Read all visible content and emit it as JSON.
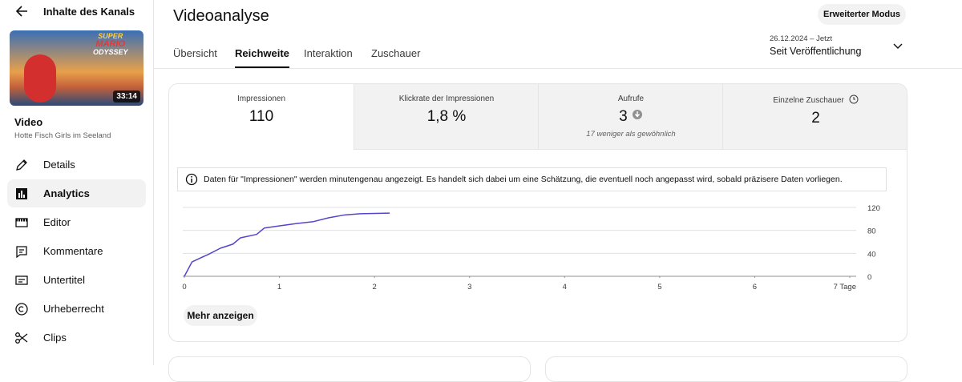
{
  "sidebar": {
    "back_label": "Inhalte des Kanals",
    "thumbnail": {
      "logo": [
        "SUPER",
        "MARIO",
        "ODYSSEY"
      ],
      "duration": "33:14"
    },
    "video_label": "Video",
    "video_title": "Hotte Fisch Girls im Seeland",
    "nav": [
      "Details",
      "Analytics",
      "Editor",
      "Kommentare",
      "Untertitel",
      "Urheberrecht",
      "Clips"
    ],
    "nav_active": 1
  },
  "header": {
    "title": "Videoanalyse",
    "mode_button": "Erweiterter Modus",
    "tabs": [
      "Übersicht",
      "Reichweite",
      "Interaktion",
      "Zuschauer"
    ],
    "active_tab": 1,
    "date_range": {
      "period": "26.12.2024 – Jetzt",
      "label": "Seit Veröffentlichung"
    }
  },
  "metrics": [
    {
      "label": "Impressionen",
      "value": "110"
    },
    {
      "label": "Klickrate der Impressionen",
      "value": "1,8 %"
    },
    {
      "label": "Aufrufe",
      "value": "3",
      "note": "17 weniger als gewöhnlich"
    },
    {
      "label": "Einzelne Zuschauer",
      "value": "2"
    }
  ],
  "info_note": "Daten für \"Impressionen\" werden minutengenau angezeigt. Es handelt sich dabei um eine Schätzung, die eventuell noch angepasst wird, sobald präzisere Daten vorliegen.",
  "chart": {
    "type": "line",
    "x": [
      0,
      0.08,
      0.17,
      0.25,
      0.38,
      0.51,
      0.59,
      0.76,
      0.84,
      1.01,
      1.18,
      1.35,
      1.52,
      1.69,
      1.85,
      2.16
    ],
    "values": [
      0,
      25,
      32,
      38,
      49,
      56,
      67,
      73,
      84,
      88,
      92,
      95,
      102,
      107,
      109,
      110
    ],
    "color": "#5344c9",
    "xlim": [
      0,
      7
    ],
    "xticks": [
      0,
      1,
      2,
      3,
      4,
      5,
      6,
      {
        "value": 7,
        "label": "7 Tage"
      }
    ],
    "ylim": [
      0,
      120
    ],
    "yticks": [
      0,
      40,
      80,
      120
    ],
    "grid": true
  },
  "more_button": "Mehr anzeigen"
}
